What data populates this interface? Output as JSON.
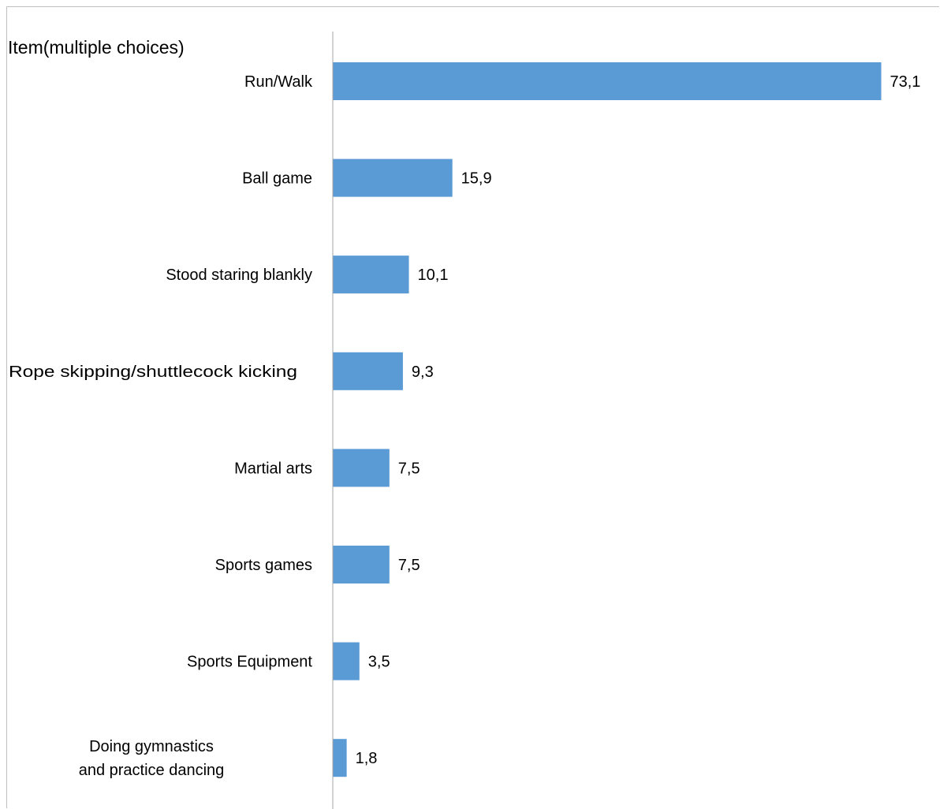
{
  "chart_data": {
    "type": "bar",
    "orientation": "horizontal",
    "title": "Item(multiple choices)",
    "xlabel": "",
    "ylabel": "",
    "categories": [
      "Run/Walk",
      "Ball game",
      "Stood staring blankly",
      "Rope skipping/shuttlecock kicking",
      "Martial arts",
      "Sports games",
      "Sports Equipment",
      "Doing gymnastics\nand practice dancing"
    ],
    "values": [
      73.1,
      15.9,
      10.1,
      9.3,
      7.5,
      7.5,
      3.5,
      1.8
    ],
    "value_labels": [
      "73,1",
      "15,9",
      "10,1",
      "9,3",
      "7,5",
      "7,5",
      "3,5",
      "1,8"
    ],
    "xlim": [
      0,
      80
    ],
    "grid": false,
    "bar_color": "#5b9bd5",
    "axis_color": "#a6a6a6"
  }
}
